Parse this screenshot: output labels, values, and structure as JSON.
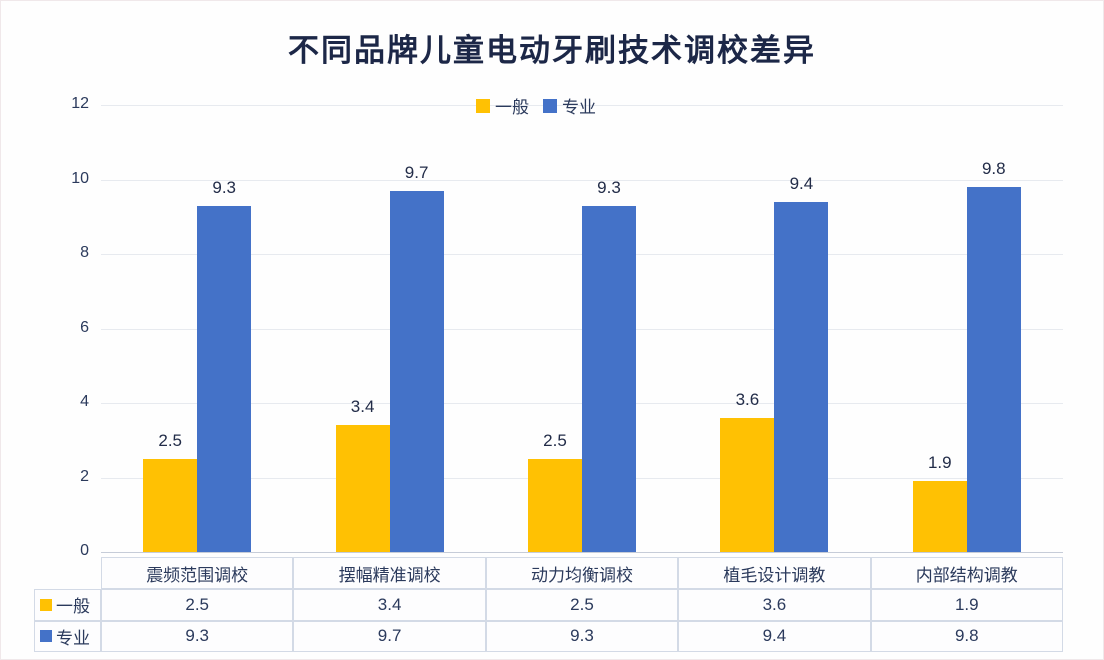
{
  "title": "不同品牌儿童电动牙刷技术调校差异",
  "colors": {
    "series_general": "#FFC103",
    "series_professional": "#4472C8",
    "title_text": "#1c2747",
    "body_text": "#2b3a5c",
    "gridline": "#e7eaef",
    "axis_line": "#c6ccd8",
    "table_border": "#d3dae6",
    "background": "#fefefe"
  },
  "chart_data": {
    "type": "bar",
    "title": "不同品牌儿童电动牙刷技术调校差异",
    "categories": [
      "震频范围调校",
      "摆幅精准调校",
      "动力均衡调校",
      "植毛设计调教",
      "内部结构调教"
    ],
    "series": [
      {
        "name": "一般",
        "color": "#FFC103",
        "values": [
          2.5,
          3.4,
          2.5,
          3.6,
          1.9
        ]
      },
      {
        "name": "专业",
        "color": "#4472C8",
        "values": [
          9.3,
          9.7,
          9.3,
          9.4,
          9.8
        ]
      }
    ],
    "xlabel": "",
    "ylabel": "",
    "ylim": [
      0,
      12
    ],
    "yticks": [
      0,
      2,
      4,
      6,
      8,
      10,
      12
    ],
    "grid": true,
    "legend_position": "top-center",
    "data_labels": true,
    "data_table": true
  }
}
